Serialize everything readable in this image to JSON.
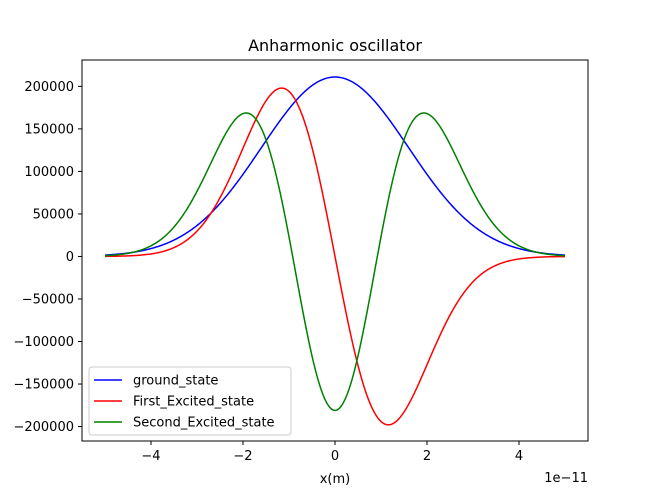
{
  "chart_data": {
    "type": "line",
    "title": "Anharmonic oscillator",
    "xlabel": "x(m)",
    "ylabel": "",
    "x_offset_label": "1e−11",
    "xlim": [
      -5.5,
      5.5
    ],
    "ylim": [
      -217000,
      231000
    ],
    "x_ticks": [
      -4,
      -2,
      0,
      2,
      4
    ],
    "x_tick_labels": [
      "−4",
      "−2",
      "0",
      "2",
      "4"
    ],
    "y_ticks": [
      -200000,
      -150000,
      -100000,
      -50000,
      0,
      50000,
      100000,
      150000,
      200000
    ],
    "y_tick_labels": [
      "−200000",
      "−150000",
      "−100000",
      "−50000",
      "0",
      "50000",
      "100000",
      "150000",
      "200000"
    ],
    "grid": false,
    "legend_position": "lower-left",
    "x_range": [
      -5,
      5
    ],
    "series": [
      {
        "name": "ground_state",
        "color": "#0000ff",
        "amplitude": 211000,
        "sigma": 1.6,
        "mode": 0
      },
      {
        "name": "First_Excited_state",
        "color": "#ff0000",
        "amplitude": 198000,
        "sigma": 1.16,
        "mode": 1
      },
      {
        "name": "Second_Excited_state",
        "color": "#008000",
        "amplitude": 181000,
        "sigma": 1.2,
        "mode": 2
      }
    ]
  }
}
